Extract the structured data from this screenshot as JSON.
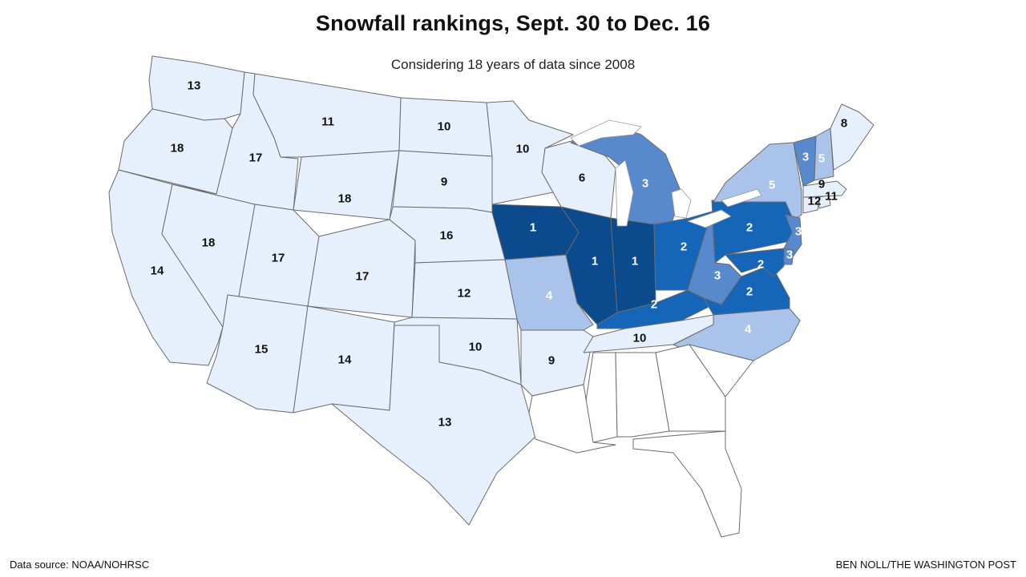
{
  "header": {
    "title": "Snowfall rankings, Sept. 30 to Dec. 16",
    "subtitle": "Considering 18 years of data since 2008"
  },
  "footer": {
    "source": "Data source: NOAA/NOHRSC",
    "credit": "BEN NOLL/THE WASHINGTON POST"
  },
  "colors": {
    "rank_1": "#0b4a8c",
    "rank_2": "#1565b8",
    "rank_3": "#5889cc",
    "rank_4_5": "#a9c3ea",
    "rank_6_plus": "#e6f0fc",
    "no_data": "#ffffff",
    "border": "#6b6b6b"
  },
  "states": [
    {
      "abbr": "WA",
      "rank": "13"
    },
    {
      "abbr": "OR",
      "rank": "18"
    },
    {
      "abbr": "CA",
      "rank": "14"
    },
    {
      "abbr": "NV",
      "rank": "18"
    },
    {
      "abbr": "ID",
      "rank": "17"
    },
    {
      "abbr": "MT",
      "rank": "11"
    },
    {
      "abbr": "WY",
      "rank": "18"
    },
    {
      "abbr": "UT",
      "rank": "17"
    },
    {
      "abbr": "AZ",
      "rank": "15"
    },
    {
      "abbr": "CO",
      "rank": "17"
    },
    {
      "abbr": "NM",
      "rank": "14"
    },
    {
      "abbr": "ND",
      "rank": "10"
    },
    {
      "abbr": "SD",
      "rank": "9"
    },
    {
      "abbr": "NE",
      "rank": "16"
    },
    {
      "abbr": "KS",
      "rank": "12"
    },
    {
      "abbr": "OK",
      "rank": "10"
    },
    {
      "abbr": "TX",
      "rank": "13"
    },
    {
      "abbr": "MN",
      "rank": "10"
    },
    {
      "abbr": "IA",
      "rank": "1"
    },
    {
      "abbr": "MO",
      "rank": "4"
    },
    {
      "abbr": "AR",
      "rank": "9"
    },
    {
      "abbr": "WI",
      "rank": "6"
    },
    {
      "abbr": "MI",
      "rank": "3"
    },
    {
      "abbr": "IL",
      "rank": "1"
    },
    {
      "abbr": "IN",
      "rank": "1"
    },
    {
      "abbr": "OH",
      "rank": "2"
    },
    {
      "abbr": "KY",
      "rank": "2"
    },
    {
      "abbr": "TN",
      "rank": "10"
    },
    {
      "abbr": "WV",
      "rank": "3"
    },
    {
      "abbr": "VA",
      "rank": "2"
    },
    {
      "abbr": "NC",
      "rank": "4"
    },
    {
      "abbr": "PA",
      "rank": "2"
    },
    {
      "abbr": "NY",
      "rank": "5"
    },
    {
      "abbr": "VT",
      "rank": "3"
    },
    {
      "abbr": "NH",
      "rank": "5"
    },
    {
      "abbr": "ME",
      "rank": "8"
    },
    {
      "abbr": "MA",
      "rank": "9"
    },
    {
      "abbr": "CT",
      "rank": "12"
    },
    {
      "abbr": "RI",
      "rank": "11"
    },
    {
      "abbr": "NJ",
      "rank": "3"
    },
    {
      "abbr": "DE",
      "rank": "3"
    },
    {
      "abbr": "MD",
      "rank": "2"
    },
    {
      "abbr": "MS",
      "rank": ""
    },
    {
      "abbr": "AL",
      "rank": ""
    },
    {
      "abbr": "GA",
      "rank": ""
    },
    {
      "abbr": "SC",
      "rank": ""
    },
    {
      "abbr": "FL",
      "rank": ""
    },
    {
      "abbr": "LA",
      "rank": ""
    }
  ]
}
